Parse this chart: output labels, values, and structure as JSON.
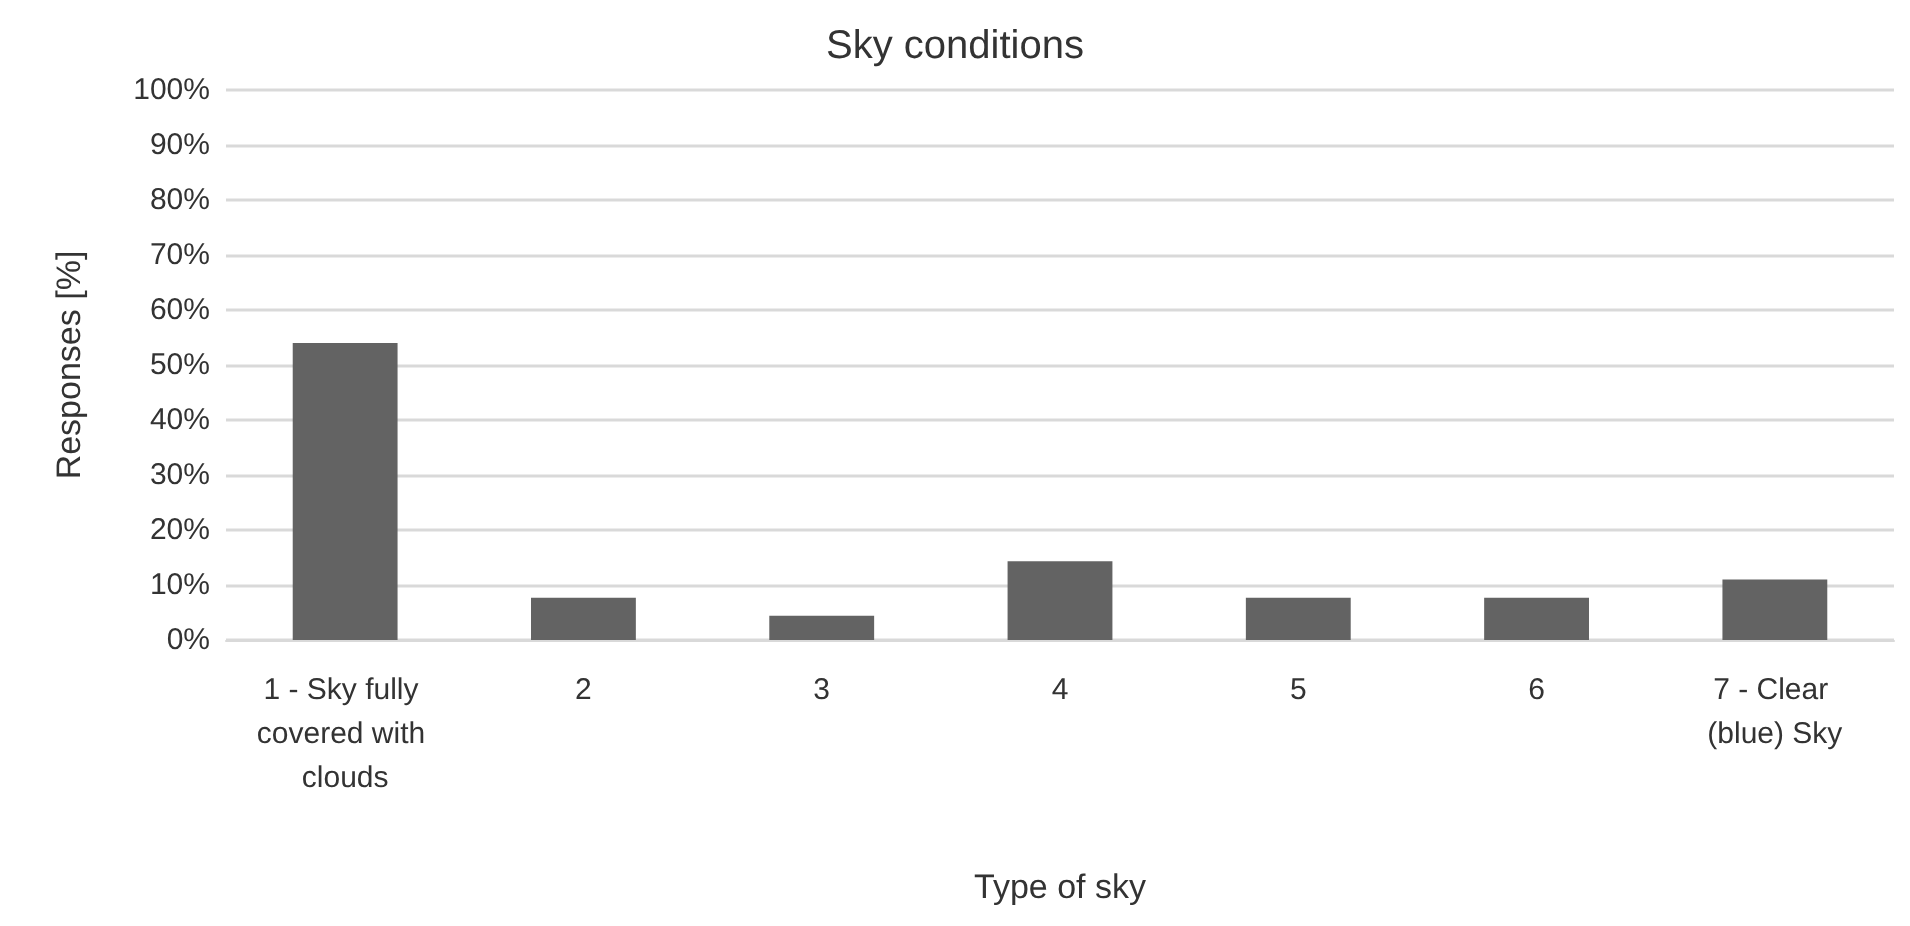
{
  "chart_data": {
    "type": "bar",
    "title": "Sky conditions",
    "xlabel": "Type of sky",
    "ylabel": "Responses [%]",
    "categories": [
      "1 - Sky fully covered with clouds",
      "2",
      "3",
      "4",
      "5",
      "6",
      "7 - Clear (blue) Sky"
    ],
    "values": [
      54,
      7.7,
      4.4,
      14.3,
      7.7,
      7.7,
      11
    ],
    "color": "#636363",
    "ylim": [
      0,
      100
    ],
    "yticks": [
      {
        "value": 0,
        "label": "0%"
      },
      {
        "value": 10,
        "label": "10%"
      },
      {
        "value": 20,
        "label": "20%"
      },
      {
        "value": 30,
        "label": "30%"
      },
      {
        "value": 40,
        "label": "40%"
      },
      {
        "value": 50,
        "label": "50%"
      },
      {
        "value": 60,
        "label": "60%"
      },
      {
        "value": 70,
        "label": "70%"
      },
      {
        "value": 80,
        "label": "80%"
      },
      {
        "value": 90,
        "label": "90%"
      },
      {
        "value": 100,
        "label": "100%"
      }
    ],
    "grid": "y"
  }
}
